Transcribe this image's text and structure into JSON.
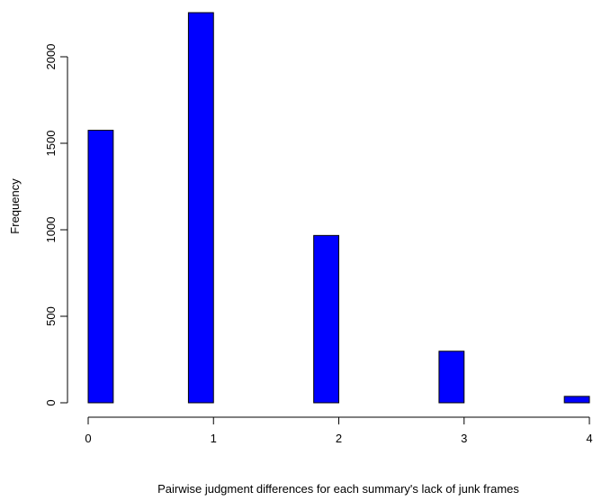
{
  "chart_data": {
    "type": "bar",
    "title": "",
    "xlabel": "Pairwise judgment differences for each summary's lack of junk frames",
    "ylabel": "Frequency",
    "xlim": [
      0,
      4
    ],
    "ylim": [
      0,
      2250
    ],
    "xticks": [
      0,
      1,
      2,
      3,
      4
    ],
    "yticks": [
      0,
      500,
      1000,
      1500,
      2000
    ],
    "bins": [
      {
        "x0": 0.0,
        "x1": 0.2,
        "count": 1575
      },
      {
        "x0": 0.2,
        "x1": 0.4,
        "count": 0
      },
      {
        "x0": 0.4,
        "x1": 0.6,
        "count": 0
      },
      {
        "x0": 0.6,
        "x1": 0.8,
        "count": 0
      },
      {
        "x0": 0.8,
        "x1": 1.0,
        "count": 2255
      },
      {
        "x0": 1.0,
        "x1": 1.2,
        "count": 0
      },
      {
        "x0": 1.2,
        "x1": 1.4,
        "count": 0
      },
      {
        "x0": 1.4,
        "x1": 1.6,
        "count": 0
      },
      {
        "x0": 1.6,
        "x1": 1.8,
        "count": 0
      },
      {
        "x0": 1.8,
        "x1": 2.0,
        "count": 967
      },
      {
        "x0": 2.0,
        "x1": 2.2,
        "count": 0
      },
      {
        "x0": 2.2,
        "x1": 2.4,
        "count": 0
      },
      {
        "x0": 2.4,
        "x1": 2.6,
        "count": 0
      },
      {
        "x0": 2.6,
        "x1": 2.8,
        "count": 0
      },
      {
        "x0": 2.8,
        "x1": 3.0,
        "count": 298
      },
      {
        "x0": 3.0,
        "x1": 3.2,
        "count": 0
      },
      {
        "x0": 3.2,
        "x1": 3.4,
        "count": 0
      },
      {
        "x0": 3.4,
        "x1": 3.6,
        "count": 0
      },
      {
        "x0": 3.6,
        "x1": 3.8,
        "count": 0
      },
      {
        "x0": 3.8,
        "x1": 4.0,
        "count": 37
      }
    ],
    "bar_color": "#0000ff",
    "bar_border_color": "#000000",
    "grid": false,
    "legend": "none"
  }
}
